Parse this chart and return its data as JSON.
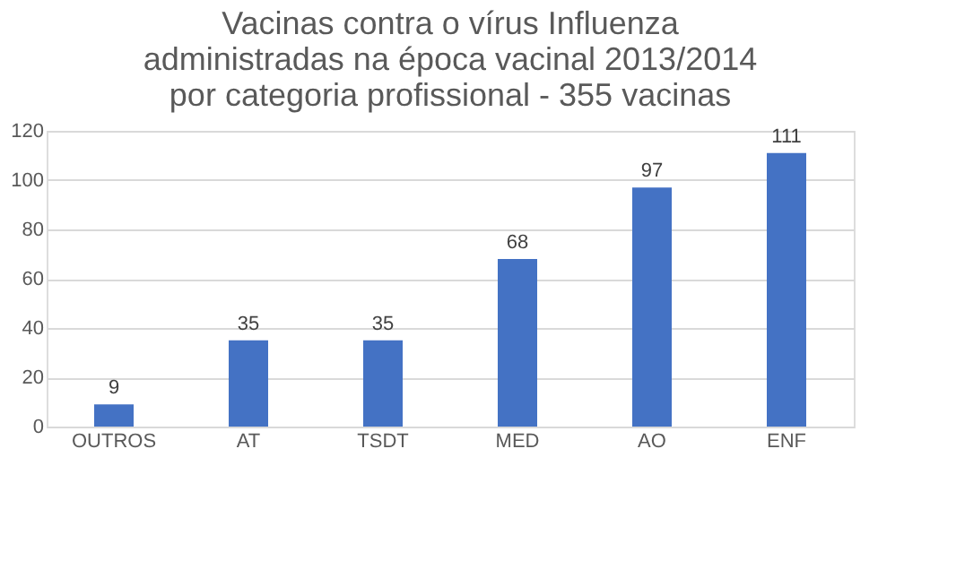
{
  "chart_data": {
    "type": "bar",
    "title": "Vacinas contra o vírus Influenza\nadministradas na época vacinal 2013/2014\npor categoria profissional - 355 vacinas",
    "categories": [
      "OUTROS",
      "AT",
      "TSDT",
      "MED",
      "AO",
      "ENF"
    ],
    "values": [
      9,
      35,
      35,
      68,
      97,
      111
    ],
    "color": "#4472c4",
    "ylim": [
      0,
      120
    ],
    "yticks": [
      0,
      20,
      40,
      60,
      80,
      100,
      120
    ],
    "grid": "y",
    "data_labels": true
  }
}
